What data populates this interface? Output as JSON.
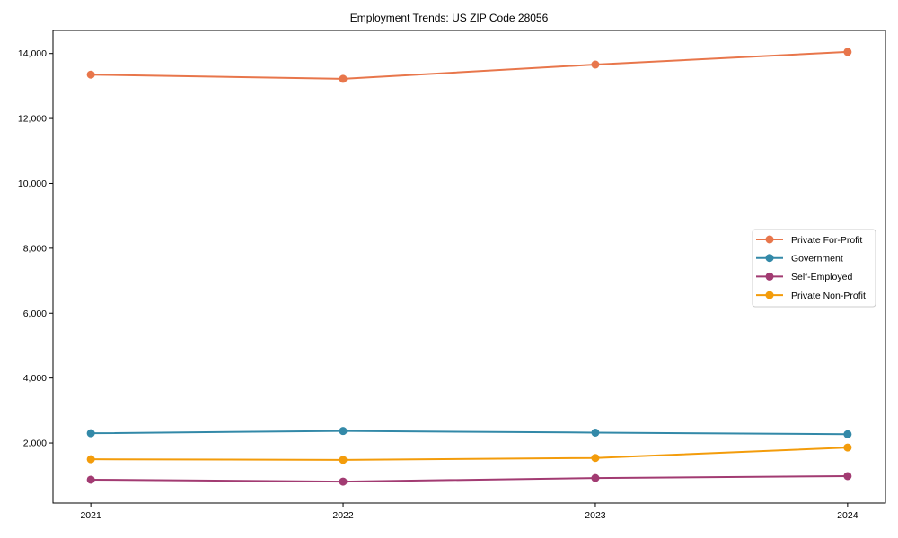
{
  "chart_data": {
    "type": "line",
    "title": "Employment Trends: US ZIP Code 28056",
    "xlabel": "",
    "ylabel": "",
    "x": [
      2021,
      2022,
      2023,
      2024
    ],
    "xtick_labels": [
      "2021",
      "2022",
      "2023",
      "2024"
    ],
    "yticks": [
      2000,
      4000,
      6000,
      8000,
      10000,
      12000,
      14000
    ],
    "ytick_labels": [
      "2,000",
      "4,000",
      "6,000",
      "8,000",
      "10,000",
      "12,000",
      "14,000"
    ],
    "xlim": [
      2020.85,
      2024.15
    ],
    "ylim": [
      150,
      14710
    ],
    "grid": false,
    "legend_position": "center-right",
    "series": [
      {
        "name": "Private For-Profit",
        "color": "#E8764B",
        "values": [
          13350,
          13220,
          13660,
          14050
        ]
      },
      {
        "name": "Government",
        "color": "#3389A8",
        "values": [
          2300,
          2370,
          2320,
          2270
        ]
      },
      {
        "name": "Self-Employed",
        "color": "#A23B72",
        "values": [
          870,
          810,
          920,
          980
        ]
      },
      {
        "name": "Private Non-Profit",
        "color": "#F39C0B",
        "values": [
          1500,
          1480,
          1540,
          1860
        ]
      }
    ]
  }
}
